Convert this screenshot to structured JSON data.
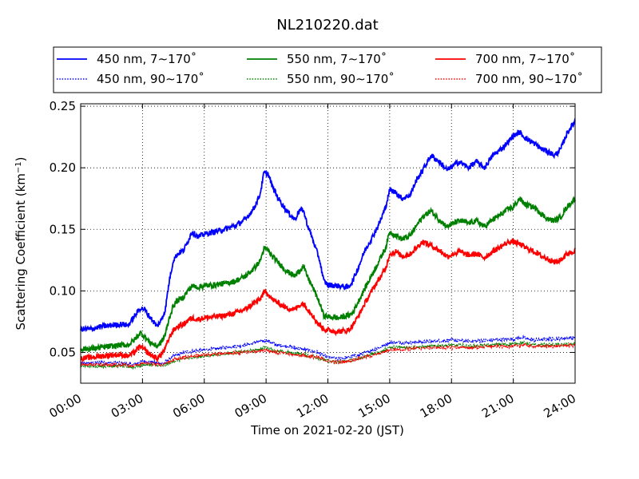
{
  "chart_data": {
    "type": "line",
    "title": "NL210220.dat",
    "xlabel": "Time on 2021-02-20 (JST)",
    "ylabel": "Scattering Coefficient (km",
    "ylabel_sup": "−1",
    "ylabel_close": ")",
    "xlim": [
      0,
      24
    ],
    "ylim": [
      0.025,
      0.252
    ],
    "x_ticks": [
      0,
      3,
      6,
      9,
      12,
      15,
      18,
      21,
      24
    ],
    "x_tick_labels": [
      "00:00",
      "03:00",
      "06:00",
      "09:00",
      "12:00",
      "15:00",
      "18:00",
      "21:00",
      "24:00"
    ],
    "y_ticks": [
      0.05,
      0.1,
      0.15,
      0.2,
      0.25
    ],
    "y_tick_labels": [
      "0.05",
      "0.10",
      "0.15",
      "0.20",
      "0.25"
    ],
    "grid": true,
    "legend_position": "top",
    "series": [
      {
        "name": "450 nm, 7∼170˚",
        "color": "#0000ff",
        "style": "solid",
        "x": [
          0,
          0.5,
          1,
          1.5,
          2,
          2.3,
          2.6,
          2.9,
          3.1,
          3.3,
          3.5,
          3.7,
          3.9,
          4.1,
          4.3,
          4.5,
          4.7,
          5.0,
          5.2,
          5.4,
          5.7,
          6.0,
          6.5,
          7.0,
          7.5,
          8.0,
          8.4,
          8.7,
          8.9,
          9.1,
          9.3,
          9.6,
          10.0,
          10.4,
          10.6,
          10.8,
          11.0,
          11.2,
          11.4,
          11.6,
          11.8,
          12.0,
          12.5,
          13.0,
          13.2,
          13.5,
          13.8,
          14.2,
          14.5,
          14.8,
          15.0,
          15.3,
          15.6,
          16.0,
          16.3,
          16.6,
          17.0,
          17.4,
          17.8,
          18.1,
          18.4,
          18.8,
          19.2,
          19.6,
          20.0,
          20.4,
          20.8,
          21.0,
          21.3,
          21.6,
          22.0,
          22.4,
          22.7,
          23.0,
          23.3,
          23.6,
          24.0
        ],
        "y": [
          0.069,
          0.069,
          0.071,
          0.072,
          0.073,
          0.072,
          0.079,
          0.086,
          0.085,
          0.08,
          0.076,
          0.071,
          0.076,
          0.084,
          0.108,
          0.125,
          0.13,
          0.133,
          0.14,
          0.148,
          0.144,
          0.146,
          0.148,
          0.15,
          0.153,
          0.158,
          0.167,
          0.178,
          0.196,
          0.195,
          0.185,
          0.175,
          0.165,
          0.158,
          0.165,
          0.166,
          0.154,
          0.145,
          0.135,
          0.125,
          0.108,
          0.105,
          0.104,
          0.103,
          0.108,
          0.12,
          0.133,
          0.145,
          0.155,
          0.168,
          0.182,
          0.18,
          0.175,
          0.178,
          0.19,
          0.198,
          0.21,
          0.205,
          0.198,
          0.202,
          0.205,
          0.2,
          0.205,
          0.2,
          0.21,
          0.215,
          0.222,
          0.226,
          0.229,
          0.224,
          0.22,
          0.215,
          0.213,
          0.21,
          0.215,
          0.228,
          0.238
        ]
      },
      {
        "name": "550 nm, 7∼170˚",
        "color": "#008000",
        "style": "solid",
        "x": [
          0,
          0.5,
          1,
          1.5,
          2,
          2.3,
          2.6,
          2.9,
          3.1,
          3.3,
          3.5,
          3.7,
          3.9,
          4.1,
          4.3,
          4.5,
          4.7,
          5.0,
          5.2,
          5.4,
          5.7,
          6.0,
          6.5,
          7.0,
          7.5,
          8.0,
          8.4,
          8.7,
          8.9,
          9.1,
          9.3,
          9.6,
          10.0,
          10.4,
          10.6,
          10.8,
          11.0,
          11.2,
          11.4,
          11.6,
          11.8,
          12.0,
          12.5,
          13.0,
          13.2,
          13.5,
          13.8,
          14.2,
          14.5,
          14.8,
          15.0,
          15.3,
          15.6,
          16.0,
          16.3,
          16.6,
          17.0,
          17.4,
          17.8,
          18.1,
          18.4,
          18.8,
          19.2,
          19.6,
          20.0,
          20.4,
          20.8,
          21.0,
          21.3,
          21.6,
          22.0,
          22.4,
          22.7,
          23.0,
          23.3,
          23.6,
          24.0
        ],
        "y": [
          0.053,
          0.053,
          0.054,
          0.055,
          0.056,
          0.056,
          0.06,
          0.066,
          0.063,
          0.059,
          0.057,
          0.055,
          0.058,
          0.064,
          0.078,
          0.088,
          0.092,
          0.095,
          0.1,
          0.104,
          0.103,
          0.104,
          0.105,
          0.106,
          0.108,
          0.112,
          0.118,
          0.124,
          0.134,
          0.133,
          0.128,
          0.123,
          0.116,
          0.112,
          0.116,
          0.12,
          0.112,
          0.105,
          0.098,
          0.09,
          0.08,
          0.079,
          0.078,
          0.08,
          0.082,
          0.092,
          0.102,
          0.115,
          0.125,
          0.135,
          0.148,
          0.145,
          0.142,
          0.145,
          0.153,
          0.16,
          0.165,
          0.158,
          0.152,
          0.155,
          0.157,
          0.155,
          0.157,
          0.152,
          0.158,
          0.162,
          0.167,
          0.168,
          0.175,
          0.17,
          0.168,
          0.162,
          0.158,
          0.157,
          0.16,
          0.168,
          0.175
        ]
      },
      {
        "name": "700 nm, 7∼170˚",
        "color": "#ff0000",
        "style": "solid",
        "x": [
          0,
          0.5,
          1,
          1.5,
          2,
          2.3,
          2.6,
          2.9,
          3.1,
          3.3,
          3.5,
          3.7,
          3.9,
          4.1,
          4.3,
          4.5,
          4.7,
          5.0,
          5.2,
          5.4,
          5.7,
          6.0,
          6.5,
          7.0,
          7.5,
          8.0,
          8.4,
          8.7,
          8.9,
          9.1,
          9.3,
          9.6,
          10.0,
          10.4,
          10.6,
          10.8,
          11.0,
          11.2,
          11.4,
          11.6,
          11.8,
          12.0,
          12.5,
          13.0,
          13.2,
          13.5,
          13.8,
          14.2,
          14.5,
          14.8,
          15.0,
          15.3,
          15.6,
          16.0,
          16.3,
          16.6,
          17.0,
          17.4,
          17.8,
          18.1,
          18.4,
          18.8,
          19.2,
          19.6,
          20.0,
          20.4,
          20.8,
          21.0,
          21.3,
          21.6,
          22.0,
          22.4,
          22.7,
          23.0,
          23.3,
          23.6,
          24.0
        ],
        "y": [
          0.045,
          0.046,
          0.047,
          0.048,
          0.048,
          0.047,
          0.05,
          0.055,
          0.052,
          0.049,
          0.047,
          0.045,
          0.048,
          0.053,
          0.062,
          0.068,
          0.071,
          0.073,
          0.076,
          0.078,
          0.077,
          0.078,
          0.079,
          0.08,
          0.082,
          0.085,
          0.09,
          0.093,
          0.099,
          0.098,
          0.093,
          0.09,
          0.086,
          0.085,
          0.088,
          0.09,
          0.086,
          0.082,
          0.076,
          0.072,
          0.069,
          0.068,
          0.067,
          0.068,
          0.072,
          0.08,
          0.09,
          0.102,
          0.11,
          0.118,
          0.13,
          0.132,
          0.128,
          0.13,
          0.135,
          0.14,
          0.137,
          0.133,
          0.128,
          0.13,
          0.132,
          0.129,
          0.13,
          0.127,
          0.132,
          0.136,
          0.14,
          0.14,
          0.138,
          0.135,
          0.132,
          0.128,
          0.126,
          0.123,
          0.125,
          0.13,
          0.133
        ]
      },
      {
        "name": "450 nm, 90∼170˚",
        "color": "#0000ff",
        "style": "dotted",
        "x": [
          0,
          1,
          2,
          2.5,
          3,
          3.5,
          4,
          4.5,
          5,
          6,
          7,
          8,
          8.5,
          9,
          9.5,
          10,
          11,
          11.5,
          12,
          12.5,
          13,
          13.5,
          14,
          14.5,
          15,
          16,
          17,
          18,
          19,
          20,
          21,
          21.5,
          22,
          23,
          24
        ],
        "y": [
          0.041,
          0.042,
          0.041,
          0.04,
          0.043,
          0.042,
          0.041,
          0.047,
          0.05,
          0.052,
          0.054,
          0.056,
          0.058,
          0.06,
          0.056,
          0.055,
          0.052,
          0.05,
          0.046,
          0.045,
          0.046,
          0.048,
          0.051,
          0.054,
          0.058,
          0.058,
          0.059,
          0.06,
          0.059,
          0.06,
          0.061,
          0.062,
          0.06,
          0.061,
          0.062
        ]
      },
      {
        "name": "550 nm, 90∼170˚",
        "color": "#008000",
        "style": "dotted",
        "x": [
          0,
          1,
          2,
          2.5,
          3,
          3.5,
          4,
          4.5,
          5,
          6,
          7,
          8,
          8.5,
          9,
          9.5,
          10,
          11,
          11.5,
          12,
          12.5,
          13,
          13.5,
          14,
          14.5,
          15,
          16,
          17,
          18,
          19,
          20,
          21,
          21.5,
          22,
          23,
          24
        ],
        "y": [
          0.039,
          0.039,
          0.039,
          0.038,
          0.04,
          0.04,
          0.039,
          0.043,
          0.045,
          0.047,
          0.049,
          0.051,
          0.052,
          0.054,
          0.051,
          0.05,
          0.048,
          0.046,
          0.043,
          0.042,
          0.043,
          0.045,
          0.048,
          0.05,
          0.054,
          0.054,
          0.055,
          0.056,
          0.055,
          0.056,
          0.057,
          0.058,
          0.056,
          0.056,
          0.057
        ]
      },
      {
        "name": "700 nm, 90∼170˚",
        "color": "#ff0000",
        "style": "dotted",
        "x": [
          0,
          1,
          2,
          2.5,
          3,
          3.5,
          4,
          4.5,
          5,
          6,
          7,
          8,
          8.5,
          9,
          9.5,
          10,
          11,
          11.5,
          12,
          12.5,
          13,
          13.5,
          14,
          14.5,
          15,
          16,
          17,
          18,
          19,
          20,
          21,
          21.5,
          22,
          23,
          24
        ],
        "y": [
          0.04,
          0.04,
          0.04,
          0.039,
          0.041,
          0.041,
          0.04,
          0.044,
          0.046,
          0.048,
          0.049,
          0.05,
          0.051,
          0.052,
          0.05,
          0.049,
          0.047,
          0.046,
          0.043,
          0.042,
          0.043,
          0.045,
          0.047,
          0.049,
          0.052,
          0.053,
          0.054,
          0.054,
          0.054,
          0.055,
          0.055,
          0.056,
          0.055,
          0.055,
          0.056
        ]
      }
    ],
    "legend_order": [
      0,
      1,
      2,
      3,
      4,
      5
    ]
  }
}
